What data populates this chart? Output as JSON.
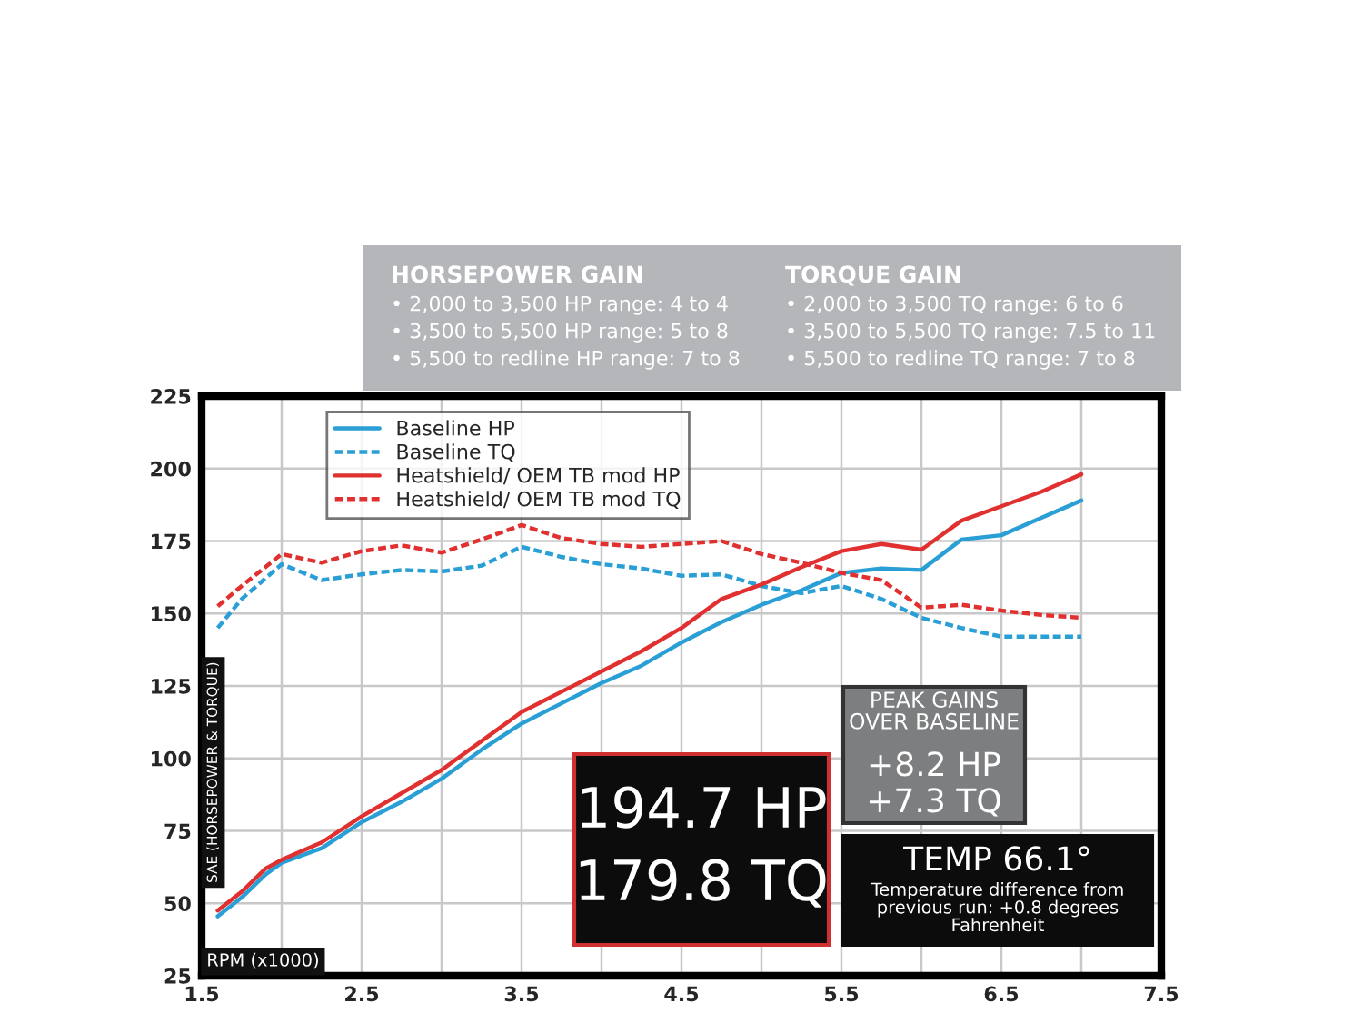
{
  "chart_data": {
    "type": "line",
    "xlabel": "RPM (x1000)",
    "ylabel": "SAE (HORSEPOWER & TORQUE)",
    "xlim": [
      1.5,
      7.5
    ],
    "ylim": [
      25,
      225
    ],
    "xticks": [
      1.5,
      {
        "value": 2,
        "label": null
      },
      2.5,
      {
        "value": 3,
        "label": null
      },
      3.5,
      {
        "value": 4,
        "label": null
      },
      4.5,
      {
        "value": 5,
        "label": null
      },
      5.5,
      {
        "value": 6,
        "label": null
      },
      6.5,
      {
        "value": 7,
        "label": null
      },
      7.5
    ],
    "yticks": [
      25,
      50,
      75,
      100,
      125,
      150,
      175,
      200,
      225
    ],
    "grid": true,
    "legend": "top left",
    "series": [
      {
        "name": "Baseline HP",
        "color": "#2a9fd6",
        "line_style": "solid",
        "x": [
          1.6,
          1.75,
          1.9,
          2.0,
          2.25,
          2.5,
          2.75,
          3.0,
          3.25,
          3.5,
          3.75,
          4.0,
          4.25,
          4.5,
          4.75,
          5.0,
          5.25,
          5.5,
          5.75,
          6.0,
          6.25,
          6.5,
          6.75,
          7.0
        ],
        "values": [
          45.5,
          52,
          60,
          64,
          69,
          78,
          85,
          93,
          103,
          112,
          119,
          126,
          132,
          140,
          147,
          153,
          158,
          164,
          165.5,
          165,
          175.5,
          177,
          183,
          189
        ]
      },
      {
        "name": "Baseline TQ",
        "color": "#2a9fd6",
        "line_style": "dashed",
        "x": [
          1.6,
          1.75,
          2.0,
          2.25,
          2.5,
          2.75,
          3.0,
          3.25,
          3.5,
          3.75,
          4.0,
          4.25,
          4.5,
          4.75,
          5.0,
          5.25,
          5.5,
          5.75,
          6.0,
          6.25,
          6.5,
          6.75,
          7.0
        ],
        "values": [
          145,
          155,
          167,
          161.5,
          163.5,
          165,
          164.5,
          166.5,
          173,
          169.5,
          167,
          165.5,
          163,
          163.5,
          159.5,
          157,
          159.5,
          155,
          148.5,
          145,
          142,
          142,
          142
        ]
      },
      {
        "name": "Heatshield/ OEM TB mod HP",
        "color": "#e03030",
        "line_style": "solid",
        "x": [
          1.6,
          1.75,
          1.9,
          2.0,
          2.25,
          2.5,
          2.75,
          3.0,
          3.25,
          3.5,
          3.75,
          4.0,
          4.25,
          4.5,
          4.75,
          5.0,
          5.25,
          5.5,
          5.75,
          6.0,
          6.25,
          6.5,
          6.75,
          7.0
        ],
        "values": [
          47.5,
          54,
          62,
          65,
          71,
          80,
          88,
          96,
          106,
          116,
          123,
          130,
          137,
          145,
          155,
          160,
          166,
          171.5,
          174,
          172,
          182,
          187,
          192,
          198
        ]
      },
      {
        "name": "Heatshield/ OEM TB mod TQ",
        "color": "#e03030",
        "line_style": "dashed",
        "x": [
          1.6,
          1.75,
          2.0,
          2.25,
          2.5,
          2.75,
          3.0,
          3.25,
          3.5,
          3.75,
          4.0,
          4.25,
          4.5,
          4.75,
          5.0,
          5.25,
          5.5,
          5.75,
          6.0,
          6.25,
          6.5,
          6.75,
          7.0
        ],
        "values": [
          152.5,
          159.5,
          170.5,
          167.5,
          171.5,
          173.5,
          171,
          175.5,
          180.5,
          176,
          174,
          173,
          174,
          175,
          170.5,
          167.5,
          164,
          161.5,
          152,
          153,
          151,
          149.5,
          148.5
        ]
      }
    ],
    "annotations": [
      "HORSEPOWER GAIN",
      "• 2,000 to 3,500 HP range: 4 to 4",
      "• 3,500 to 5,500 HP range: 5 to 8",
      "• 5,500 to redline HP range: 7 to 8",
      "TORQUE GAIN",
      "• 2,000 to 3,500 TQ range: 6 to 6",
      "• 3,500 to 5,500 TQ range: 7.5 to 11",
      "• 5,500 to redline TQ range: 7 to 8",
      "PEAK GAINS\nOVER BASELINE",
      "+8.2 HP",
      "+7.3 TQ",
      "194.7 HP",
      "179.8 TQ",
      "TEMP 66.1°",
      "Temperature difference from\nprevious run: +0.8 degrees\nFahrenheit"
    ]
  }
}
